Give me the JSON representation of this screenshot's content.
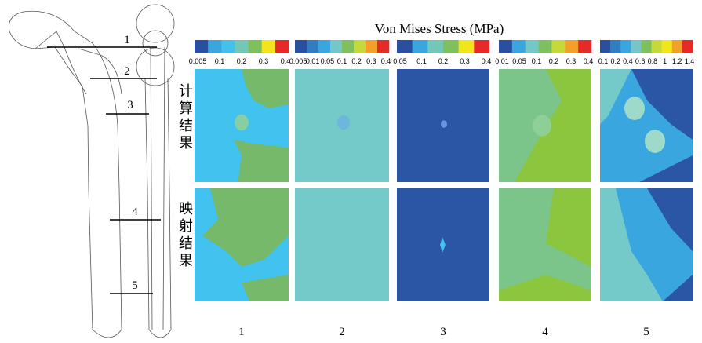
{
  "title": "Von Mises Stress (MPa)",
  "row_labels": [
    "计算结果",
    "映射结果"
  ],
  "section_labels": [
    "1",
    "2",
    "3",
    "4",
    "5"
  ],
  "columns": [
    {
      "label": "1",
      "colorbar_ticks": [
        "0.005",
        "0.1",
        "0.2",
        "0.3",
        "0.4"
      ]
    },
    {
      "label": "2",
      "colorbar_ticks": [
        "0.005",
        "0.01",
        "0.05",
        "0.1",
        "0.2",
        "0.3",
        "0.4"
      ]
    },
    {
      "label": "3",
      "colorbar_ticks": [
        "0.05",
        "0.1",
        "0.2",
        "0.3",
        "0.4"
      ]
    },
    {
      "label": "4",
      "colorbar_ticks": [
        "0.01",
        "0.05",
        "0.1",
        "0.2",
        "0.3",
        "0.4"
      ]
    },
    {
      "label": "5",
      "colorbar_ticks": [
        "0.1",
        "0.2",
        "0.4",
        "0.6",
        "0.8",
        "1",
        "1.2",
        "1.4"
      ]
    }
  ]
}
